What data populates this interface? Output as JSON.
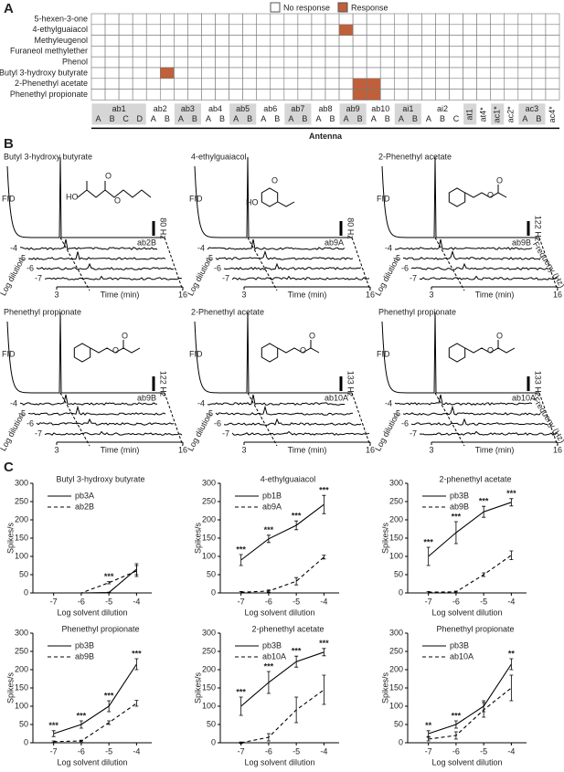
{
  "panel_labels": [
    "A",
    "B",
    "C"
  ],
  "chart_data": [
    {
      "type": "grid",
      "legend": [
        {
          "name": "No response",
          "color": "#ffffff"
        },
        {
          "name": "Response",
          "color": "#c0603a"
        }
      ],
      "rows": [
        "5-hexen-3-one",
        "4-ethylguaiacol",
        "Methyleugenol",
        "Furaneol methylether",
        "Phenol",
        "Butyl 3-hydroxy butyrate",
        "2-Phenethyl acetate",
        "Phenethyl propionate"
      ],
      "sensilla": [
        {
          "name": "ab1",
          "neurons": [
            "A",
            "B",
            "C",
            "D"
          ]
        },
        {
          "name": "ab2",
          "neurons": [
            "A",
            "B"
          ]
        },
        {
          "name": "ab3",
          "neurons": [
            "A",
            "B"
          ]
        },
        {
          "name": "ab4",
          "neurons": [
            "A",
            "B"
          ]
        },
        {
          "name": "ab5",
          "neurons": [
            "A",
            "B"
          ]
        },
        {
          "name": "ab6",
          "neurons": [
            "A",
            "B"
          ]
        },
        {
          "name": "ab7",
          "neurons": [
            "A",
            "B"
          ]
        },
        {
          "name": "ab8",
          "neurons": [
            "A",
            "B"
          ]
        },
        {
          "name": "ab9",
          "neurons": [
            "A",
            "B"
          ]
        },
        {
          "name": "ab10",
          "neurons": [
            "A",
            "B"
          ]
        },
        {
          "name": "ai1",
          "neurons": [
            "A",
            "B"
          ]
        },
        {
          "name": "ai2",
          "neurons": [
            "A",
            "B",
            "C"
          ]
        },
        {
          "name": "at1",
          "neurons": []
        },
        {
          "name": "at4*",
          "neurons": []
        },
        {
          "name": "ac1*",
          "neurons": []
        },
        {
          "name": "ac2*",
          "neurons": []
        },
        {
          "name": "ac3",
          "neurons": [
            "A",
            "B"
          ]
        },
        {
          "name": "ac4*",
          "neurons": []
        }
      ],
      "responses": [
        [
          1,
          18
        ],
        [
          5,
          5
        ],
        [
          6,
          19
        ],
        [
          6,
          20
        ],
        [
          7,
          19
        ],
        [
          7,
          20
        ]
      ],
      "x_label": "Antenna"
    },
    {
      "type": "traces",
      "panels": [
        {
          "title": "Butyl 3-hydroxy butyrate",
          "fid_label": "FID",
          "scale_label": "80 Hz",
          "neuron": "ab2B",
          "atoms": [
            "HO",
            "O",
            "O"
          ],
          "dilutions": [
            -4,
            -5,
            -6,
            -7
          ],
          "y_label": "Log dilution",
          "x_label": "Time (min)",
          "xlim": [
            3,
            16
          ],
          "xticks": [
            3,
            16
          ]
        },
        {
          "title": "4-ethylguaiacol",
          "fid_label": "FID",
          "scale_label": "80 Hz",
          "neuron": "ab9A",
          "atoms": [
            "O",
            "HO"
          ],
          "dilutions": [
            -4,
            -5,
            -6,
            -7
          ],
          "y_label": "Log dilution",
          "x_label": "Time (min)",
          "xlim": [
            3,
            16
          ],
          "xticks": [
            3,
            16
          ]
        },
        {
          "title": "2-Phenethyl acetate",
          "fid_label": "FID",
          "scale_label": "122 Hz",
          "neuron": "ab9B",
          "atoms": [
            "O",
            "O"
          ],
          "dilutions": [
            -4,
            -5,
            -6,
            -7
          ],
          "y_label": "Log dilution",
          "x_label": "Time (min)",
          "xlim": [
            3,
            16
          ],
          "xticks": [
            3,
            16
          ],
          "z_label": "Frequeny (Hz)"
        },
        {
          "title": "Phenethyl propionate",
          "fid_label": "FID",
          "scale_label": "122 Hz",
          "neuron": "ab9B",
          "atoms": [
            "O",
            "O"
          ],
          "dilutions": [
            -4,
            -5,
            -6,
            -7
          ],
          "y_label": "Log dilution",
          "x_label": "Time (min)",
          "xlim": [
            3,
            16
          ],
          "xticks": [
            3,
            16
          ]
        },
        {
          "title": "2-Phenethyl acetate",
          "fid_label": "FID",
          "scale_label": "133 Hz",
          "neuron": "ab10A",
          "atoms": [
            "O",
            "O"
          ],
          "dilutions": [
            -4,
            -5,
            -6,
            -7
          ],
          "y_label": "Log dilution",
          "x_label": "Time (min)",
          "xlim": [
            3,
            16
          ],
          "xticks": [
            3,
            16
          ]
        },
        {
          "title": "Phenethyl propionate",
          "fid_label": "FID",
          "scale_label": "133 Hz",
          "neuron": "ab10A",
          "atoms": [
            "O",
            "O"
          ],
          "dilutions": [
            -4,
            -5,
            -6,
            -7
          ],
          "y_label": "Log dilution",
          "x_label": "Time (min)",
          "xlim": [
            3,
            16
          ],
          "xticks": [
            3,
            16
          ],
          "z_label": "Frequeny (Hz)"
        }
      ]
    },
    {
      "type": "line",
      "title": "Butyl 3-hydroxy butyrate",
      "x_label": "Log solvent dilution",
      "y_label": "Spikes/s",
      "x": [
        -7,
        -6,
        -5,
        -4
      ],
      "xlim": [
        -7.75,
        -3.45
      ],
      "xticks": [
        -7,
        -6,
        -5,
        -4
      ],
      "ylim": [
        0,
        300
      ],
      "yticks": [
        0,
        50,
        100,
        150,
        200,
        250,
        300
      ],
      "series": [
        {
          "name": "pb3A",
          "color": "#000000",
          "linestyle": "solid",
          "values": [
            0,
            0,
            1,
            65
          ],
          "errors": [
            0,
            0,
            1,
            15
          ]
        },
        {
          "name": "ab2B",
          "color": "#000000",
          "linestyle": "dashed",
          "values": [
            0,
            0,
            28,
            60
          ],
          "errors": [
            0,
            0,
            3,
            15
          ]
        }
      ],
      "annotations": [
        null,
        null,
        "***",
        null
      ]
    },
    {
      "type": "line",
      "title": "4-ethylguaiacol",
      "x_label": "Log solvent dilution",
      "y_label": "Spikes/s",
      "x": [
        -7,
        -6,
        -5,
        -4
      ],
      "xlim": [
        -7.75,
        -3.45
      ],
      "xticks": [
        -7,
        -6,
        -5,
        -4
      ],
      "ylim": [
        0,
        300
      ],
      "yticks": [
        0,
        50,
        100,
        150,
        200,
        250,
        300
      ],
      "series": [
        {
          "name": "pb1B",
          "color": "#000000",
          "linestyle": "solid",
          "values": [
            90,
            148,
            185,
            242
          ],
          "errors": [
            15,
            10,
            12,
            25
          ]
        },
        {
          "name": "ab9A",
          "color": "#000000",
          "linestyle": "dashed",
          "values": [
            2,
            5,
            32,
            98
          ],
          "errors": [
            2,
            3,
            10,
            5
          ]
        }
      ],
      "annotations": [
        "***",
        "***",
        "***",
        "***"
      ]
    },
    {
      "type": "line",
      "title": "2-phenethyl acetate",
      "x_label": "Log solvent dilution",
      "y_label": "Spikes/s",
      "x": [
        -7,
        -6,
        -5,
        -4
      ],
      "xlim": [
        -7.75,
        -3.45
      ],
      "xticks": [
        -7,
        -6,
        -5,
        -4
      ],
      "ylim": [
        0,
        300
      ],
      "yticks": [
        0,
        50,
        100,
        150,
        200,
        250,
        300
      ],
      "series": [
        {
          "name": "pb3B",
          "color": "#000000",
          "linestyle": "solid",
          "values": [
            100,
            165,
            222,
            248
          ],
          "errors": [
            25,
            30,
            15,
            10
          ]
        },
        {
          "name": "ab9B",
          "color": "#000000",
          "linestyle": "dashed",
          "values": [
            2,
            3,
            50,
            103
          ],
          "errors": [
            2,
            2,
            5,
            12
          ]
        }
      ],
      "annotations": [
        "***",
        "***",
        "***",
        "***"
      ]
    },
    {
      "type": "line",
      "title": "Phenethyl propionate",
      "x_label": "Log solvent dilution",
      "y_label": "Spikes/s",
      "x": [
        -7,
        -6,
        -5,
        -4
      ],
      "xlim": [
        -7.75,
        -3.45
      ],
      "xticks": [
        -7,
        -6,
        -5,
        -4
      ],
      "ylim": [
        0,
        300
      ],
      "yticks": [
        0,
        50,
        100,
        150,
        200,
        250,
        300
      ],
      "series": [
        {
          "name": "pb3B",
          "color": "#000000",
          "linestyle": "solid",
          "values": [
            25,
            50,
            100,
            215
          ],
          "errors": [
            8,
            10,
            15,
            15
          ]
        },
        {
          "name": "ab9B",
          "color": "#000000",
          "linestyle": "dashed",
          "values": [
            3,
            5,
            55,
            108
          ],
          "errors": [
            2,
            2,
            5,
            8
          ]
        }
      ],
      "annotations": [
        "***",
        "***",
        "***",
        "***"
      ]
    },
    {
      "type": "line",
      "title": "2-phenethyl acetate",
      "x_label": "Log solvent dilution",
      "y_label": "Spikes/s",
      "x": [
        -7,
        -6,
        -5,
        -4
      ],
      "xlim": [
        -7.75,
        -3.45
      ],
      "xticks": [
        -7,
        -6,
        -5,
        -4
      ],
      "ylim": [
        0,
        300
      ],
      "yticks": [
        0,
        50,
        100,
        150,
        200,
        250,
        300
      ],
      "series": [
        {
          "name": "pb3B",
          "color": "#000000",
          "linestyle": "solid",
          "values": [
            100,
            165,
            222,
            248
          ],
          "errors": [
            25,
            30,
            15,
            10
          ]
        },
        {
          "name": "ab10A",
          "color": "#000000",
          "linestyle": "dashed",
          "values": [
            0,
            15,
            90,
            145
          ],
          "errors": [
            2,
            10,
            35,
            40
          ]
        }
      ],
      "annotations": [
        "***",
        "***",
        "***",
        "***"
      ]
    },
    {
      "type": "line",
      "title": "Phenethyl propionate",
      "x_label": "Log solvent dilution",
      "y_label": "Spikes/s",
      "x": [
        -7,
        -6,
        -5,
        -4
      ],
      "xlim": [
        -7.75,
        -3.45
      ],
      "xticks": [
        -7,
        -6,
        -5,
        -4
      ],
      "ylim": [
        0,
        300
      ],
      "yticks": [
        0,
        50,
        100,
        150,
        200,
        250,
        300
      ],
      "series": [
        {
          "name": "pb3B",
          "color": "#000000",
          "linestyle": "solid",
          "values": [
            25,
            50,
            100,
            215
          ],
          "errors": [
            8,
            10,
            15,
            15
          ]
        },
        {
          "name": "ab10A",
          "color": "#000000",
          "linestyle": "dashed",
          "values": [
            10,
            20,
            90,
            150
          ],
          "errors": [
            5,
            10,
            20,
            35
          ]
        }
      ],
      "annotations": [
        "**",
        "***",
        null,
        "**"
      ]
    }
  ]
}
